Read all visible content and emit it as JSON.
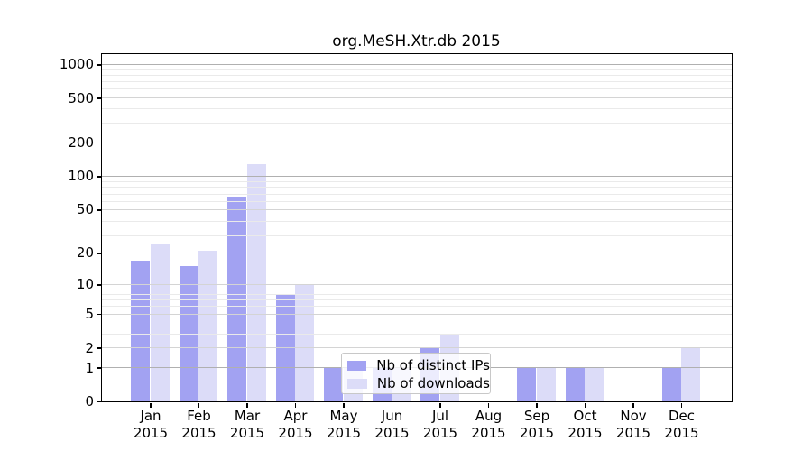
{
  "figure": {
    "title": "org.MeSH.Xtr.db 2015"
  },
  "legend": {
    "items": [
      {
        "key": "distinct-ips",
        "label": "Nb of distinct IPs"
      },
      {
        "key": "downloads",
        "label": "Nb of downloads"
      }
    ]
  },
  "colors": {
    "bar_distinct_ips": "#a2a2f2",
    "bar_downloads": "#dcdcf8",
    "axis": "#000000",
    "grid_strong": "#b0b0b0",
    "grid_regular": "#d4d4d4",
    "grid_minor": "#eaeaea",
    "legend_border": "#c8c8c8"
  },
  "chart_data": {
    "type": "bar",
    "title": "org.MeSH.Xtr.db 2015",
    "categories": [
      "Jan",
      "Feb",
      "Mar",
      "Apr",
      "May",
      "Jun",
      "Jul",
      "Aug",
      "Sep",
      "Oct",
      "Nov",
      "Dec"
    ],
    "year": "2015",
    "series": [
      {
        "key": "distinct-ips",
        "name": "Nb of distinct IPs",
        "color": "#a2a2f2",
        "values": [
          17,
          15,
          66,
          8,
          1,
          1,
          2,
          0,
          1,
          1,
          0,
          1
        ]
      },
      {
        "key": "downloads",
        "name": "Nb of downloads",
        "color": "#dcdcf8",
        "values": [
          24,
          21,
          128,
          10,
          1,
          1,
          3,
          0,
          1,
          1,
          0,
          2
        ]
      }
    ],
    "yscale": "log10(1+y)",
    "yticks": [
      0,
      1,
      2,
      5,
      10,
      20,
      50,
      100,
      200,
      500,
      1000
    ],
    "ylim": [
      0,
      1233
    ],
    "grid": "on",
    "legend_position": "lower center inside"
  }
}
